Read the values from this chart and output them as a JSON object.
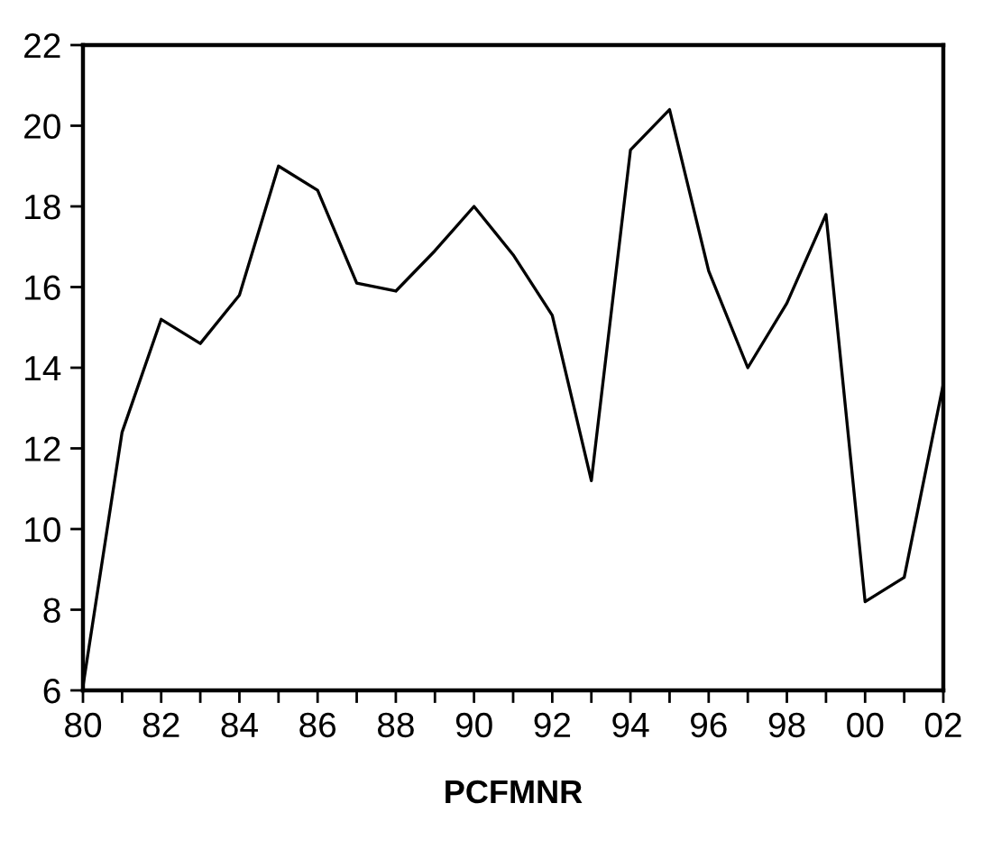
{
  "chart_data": {
    "type": "line",
    "xlabel": "PCFMNR",
    "x": [
      1980,
      1981,
      1982,
      1983,
      1984,
      1985,
      1986,
      1987,
      1988,
      1989,
      1990,
      1991,
      1992,
      1993,
      1994,
      1995,
      1996,
      1997,
      1998,
      1999,
      2000,
      2001,
      2002
    ],
    "series": [
      {
        "color": "#000000",
        "values": [
          6.1,
          12.4,
          15.2,
          14.6,
          15.8,
          19.0,
          18.4,
          16.1,
          15.9,
          16.9,
          18.0,
          16.8,
          15.3,
          11.2,
          19.4,
          20.4,
          16.4,
          14.0,
          15.6,
          17.8,
          8.2,
          8.8,
          13.6
        ]
      }
    ],
    "xlim": [
      1980,
      2002
    ],
    "xticks": [
      {
        "value": 1980,
        "label": "80"
      },
      {
        "value": 1981,
        "label": null
      },
      {
        "value": 1982,
        "label": "82"
      },
      {
        "value": 1983,
        "label": null
      },
      {
        "value": 1984,
        "label": "84"
      },
      {
        "value": 1985,
        "label": null
      },
      {
        "value": 1986,
        "label": "86"
      },
      {
        "value": 1987,
        "label": null
      },
      {
        "value": 1988,
        "label": "88"
      },
      {
        "value": 1989,
        "label": null
      },
      {
        "value": 1990,
        "label": "90"
      },
      {
        "value": 1991,
        "label": null
      },
      {
        "value": 1992,
        "label": "92"
      },
      {
        "value": 1993,
        "label": null
      },
      {
        "value": 1994,
        "label": "94"
      },
      {
        "value": 1995,
        "label": null
      },
      {
        "value": 1996,
        "label": "96"
      },
      {
        "value": 1997,
        "label": null
      },
      {
        "value": 1998,
        "label": "98"
      },
      {
        "value": 1999,
        "label": null
      },
      {
        "value": 2000,
        "label": "00"
      },
      {
        "value": 2001,
        "label": null
      },
      {
        "value": 2002,
        "label": "02"
      }
    ],
    "ylim": [
      6,
      22
    ],
    "yticks": [
      6,
      8,
      10,
      12,
      14,
      16,
      18,
      20,
      22
    ],
    "grid": false
  }
}
